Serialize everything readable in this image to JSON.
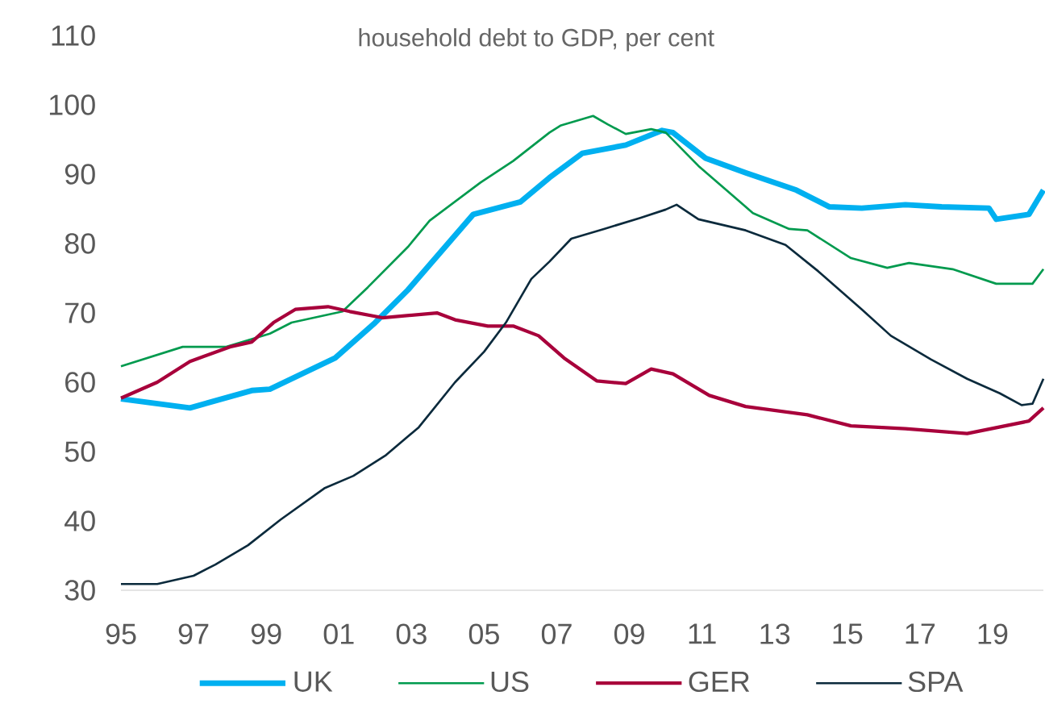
{
  "chart_data": {
    "type": "line",
    "title": "household debt to GDP, per cent",
    "xlim": [
      1995,
      2020.4
    ],
    "ylim": [
      30,
      110
    ],
    "xticks": [
      {
        "value": 1995,
        "label": "95"
      },
      {
        "value": 1997,
        "label": "97"
      },
      {
        "value": 1999,
        "label": "99"
      },
      {
        "value": 2001,
        "label": "01"
      },
      {
        "value": 2003,
        "label": "03"
      },
      {
        "value": 2005,
        "label": "05"
      },
      {
        "value": 2007,
        "label": "07"
      },
      {
        "value": 2009,
        "label": "09"
      },
      {
        "value": 2011,
        "label": "11"
      },
      {
        "value": 2013,
        "label": "13"
      },
      {
        "value": 2015,
        "label": "15"
      },
      {
        "value": 2017,
        "label": "17"
      },
      {
        "value": 2019,
        "label": "19"
      }
    ],
    "yticks": [
      30,
      40,
      50,
      60,
      70,
      80,
      90,
      100,
      110
    ],
    "grid": false,
    "legend": "bottom",
    "marker": "none",
    "line_style": "solid",
    "series": [
      {
        "name": "UK",
        "color": "#00b0f0",
        "x": [
          1995.0,
          1996.9,
          1998.6,
          1999.1,
          2000.9,
          2002.0,
          2002.9,
          2004.7,
          2006.0,
          2006.8,
          2007.7,
          2008.9,
          2009.9,
          2010.2,
          2011.1,
          2012.2,
          2013.6,
          2014.5,
          2015.4,
          2016.6,
          2017.6,
          2018.9,
          2019.1,
          2020.0,
          2020.4
        ],
        "values": [
          57.6,
          56.3,
          58.8,
          59,
          63.5,
          68.6,
          73.3,
          84.2,
          86,
          89.5,
          93,
          94.2,
          96.3,
          96,
          92.3,
          90.2,
          87.7,
          85.3,
          85.1,
          85.6,
          85.3,
          85.1,
          83.5,
          84.2,
          87.7
        ]
      },
      {
        "name": "US",
        "color": "#009a4e",
        "x": [
          1995.0,
          1996.7,
          1997.9,
          1999.1,
          1999.7,
          2001.1,
          2001.8,
          2002.9,
          2003.5,
          2004.9,
          2005.8,
          2006.8,
          2007.1,
          2008.0,
          2008.4,
          2008.9,
          2009.6,
          2010.0,
          2010.9,
          2012.4,
          2013.4,
          2013.9,
          2015.1,
          2016.1,
          2016.7,
          2017.9,
          2019.1,
          2020.1,
          2020.4
        ],
        "values": [
          62.3,
          65.1,
          65.1,
          67,
          68.6,
          70.2,
          73.7,
          79.5,
          83.3,
          88.8,
          91.9,
          96,
          97,
          98.4,
          97.2,
          95.8,
          96.5,
          96,
          91.2,
          84.4,
          82.1,
          81.9,
          77.9,
          76.5,
          77.2,
          76.3,
          74.2,
          74.2,
          76.3
        ]
      },
      {
        "name": "GER",
        "color": "#a8003b",
        "x": [
          1995.0,
          1996.0,
          1996.9,
          1998.0,
          1998.6,
          1999.2,
          1999.8,
          2000.7,
          2001.3,
          2002.2,
          2003.7,
          2004.2,
          2005.1,
          2005.8,
          2006.5,
          2007.2,
          2008.1,
          2008.9,
          2009.6,
          2010.2,
          2011.2,
          2012.2,
          2013.9,
          2015.1,
          2016.6,
          2018.3,
          2020.0,
          2020.4
        ],
        "values": [
          57.7,
          60,
          63,
          65.1,
          65.8,
          68.6,
          70.5,
          70.9,
          70.2,
          69.3,
          70,
          69,
          68.1,
          68.1,
          66.7,
          63.5,
          60.2,
          59.8,
          61.9,
          61.2,
          58.1,
          56.5,
          55.3,
          53.7,
          53.3,
          52.6,
          54.4,
          56.3
        ]
      },
      {
        "name": "SPA",
        "color": "#0b2a3c",
        "x": [
          1995.0,
          1996.0,
          1997.0,
          1997.6,
          1998.5,
          1999.4,
          2000.6,
          2001.4,
          2002.3,
          2003.2,
          2004.2,
          2005.0,
          2005.6,
          2006.3,
          2006.8,
          2007.4,
          2008.3,
          2009.3,
          2010.0,
          2010.3,
          2010.9,
          2012.2,
          2013.3,
          2014.2,
          2015.4,
          2016.2,
          2017.3,
          2018.3,
          2019.2,
          2019.8,
          2020.1,
          2020.4
        ],
        "values": [
          30.9,
          30.9,
          32.1,
          33.7,
          36.5,
          40.2,
          44.7,
          46.5,
          49.5,
          53.5,
          60,
          64.4,
          68.6,
          74.9,
          77.4,
          80.7,
          82.1,
          83.7,
          84.9,
          85.6,
          83.5,
          81.9,
          79.8,
          76,
          70.5,
          66.7,
          63.3,
          60.5,
          58.4,
          56.7,
          56.9,
          60.5
        ]
      }
    ]
  }
}
